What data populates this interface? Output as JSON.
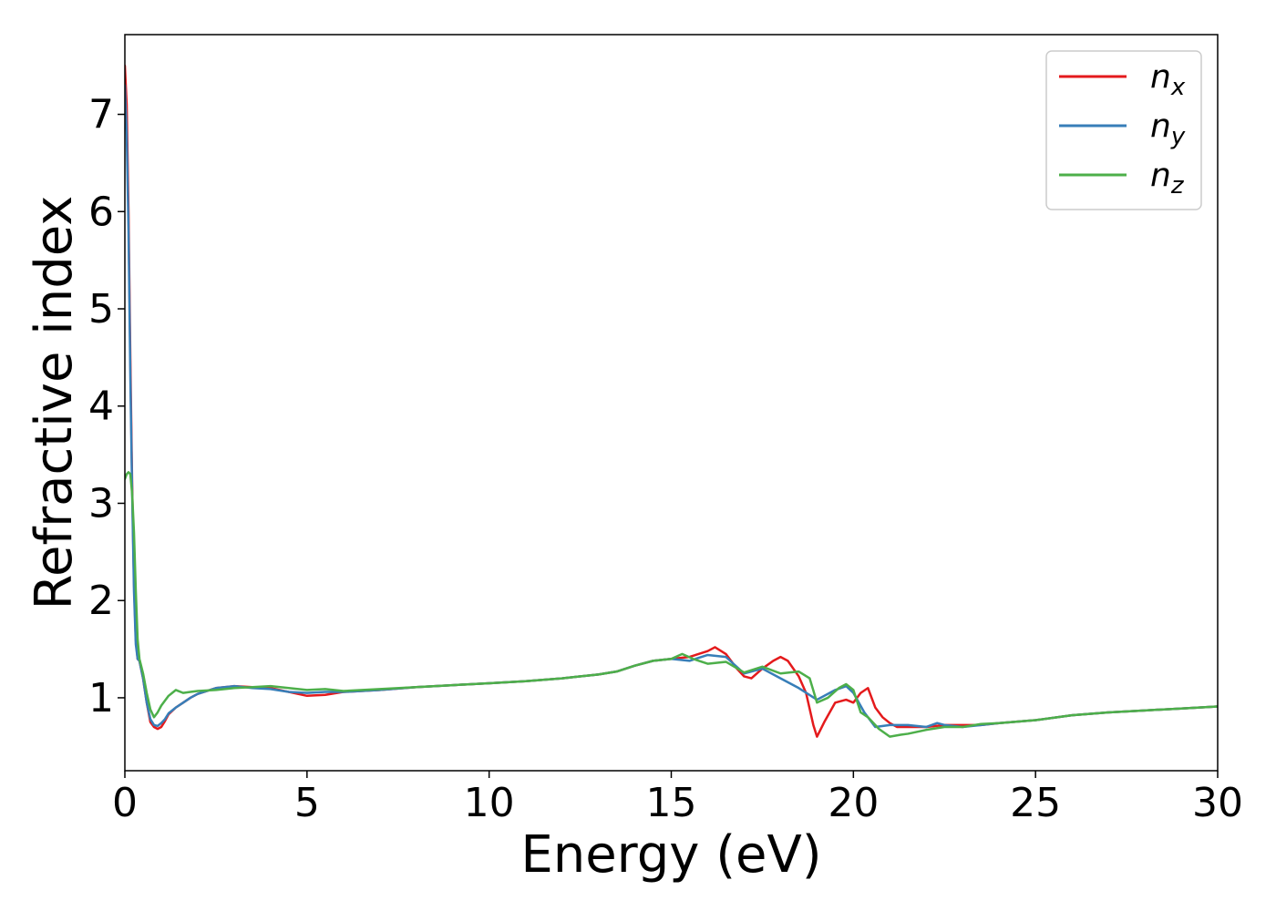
{
  "chart_data": {
    "type": "line",
    "title": "",
    "xlabel": "Energy (eV)",
    "ylabel": "Refractive index",
    "xlim": [
      0,
      30
    ],
    "ylim": [
      0.25,
      7.82
    ],
    "xticks": [
      0,
      5,
      10,
      15,
      20,
      25,
      30
    ],
    "yticks": [
      1,
      2,
      3,
      4,
      5,
      6,
      7
    ],
    "grid": false,
    "legend_position": "top-right",
    "series": [
      {
        "name": "n",
        "subscript": "x",
        "color": "#e41a1c",
        "x": [
          0,
          0.05,
          0.1,
          0.15,
          0.2,
          0.25,
          0.3,
          0.35,
          0.4,
          0.5,
          0.6,
          0.7,
          0.8,
          0.9,
          1.0,
          1.1,
          1.2,
          1.4,
          1.6,
          1.8,
          2.0,
          2.5,
          3.0,
          3.5,
          4.0,
          4.5,
          5.0,
          5.5,
          6.0,
          7.0,
          8.0,
          9.0,
          10.0,
          11.0,
          12.0,
          13.0,
          13.5,
          14.0,
          14.5,
          15.0,
          15.5,
          16.0,
          16.2,
          16.5,
          16.8,
          17.0,
          17.2,
          17.5,
          17.8,
          18.0,
          18.2,
          18.5,
          18.7,
          18.9,
          19.0,
          19.2,
          19.5,
          19.8,
          20.0,
          20.2,
          20.4,
          20.6,
          20.8,
          21.0,
          21.2,
          21.5,
          22.0,
          22.5,
          23.0,
          23.5,
          24.0,
          25.0,
          26.0,
          27.0,
          28.0,
          29.0,
          30.0
        ],
        "y": [
          7.5,
          7.1,
          6.0,
          4.5,
          3.2,
          2.2,
          1.6,
          1.4,
          1.38,
          1.2,
          0.95,
          0.75,
          0.7,
          0.68,
          0.7,
          0.76,
          0.83,
          0.9,
          0.95,
          1.0,
          1.04,
          1.1,
          1.12,
          1.11,
          1.1,
          1.06,
          1.02,
          1.03,
          1.06,
          1.08,
          1.11,
          1.13,
          1.15,
          1.17,
          1.2,
          1.24,
          1.27,
          1.33,
          1.38,
          1.4,
          1.42,
          1.48,
          1.52,
          1.45,
          1.3,
          1.22,
          1.2,
          1.3,
          1.38,
          1.42,
          1.38,
          1.22,
          1.05,
          0.72,
          0.6,
          0.75,
          0.95,
          0.98,
          0.95,
          1.05,
          1.1,
          0.9,
          0.8,
          0.74,
          0.7,
          0.7,
          0.7,
          0.72,
          0.72,
          0.72,
          0.74,
          0.77,
          0.82,
          0.85,
          0.87,
          0.89,
          0.91
        ]
      },
      {
        "name": "n",
        "subscript": "y",
        "color": "#377eb8",
        "x": [
          0,
          0.05,
          0.1,
          0.15,
          0.2,
          0.25,
          0.3,
          0.35,
          0.4,
          0.5,
          0.6,
          0.7,
          0.8,
          0.9,
          1.0,
          1.1,
          1.2,
          1.4,
          1.6,
          1.8,
          2.0,
          2.5,
          3.0,
          3.5,
          4.0,
          4.5,
          5.0,
          5.5,
          6.0,
          7.0,
          8.0,
          9.0,
          10.0,
          11.0,
          12.0,
          13.0,
          13.5,
          14.0,
          14.5,
          15.0,
          15.5,
          16.0,
          16.5,
          17.0,
          17.5,
          18.0,
          18.5,
          19.0,
          19.5,
          19.8,
          20.0,
          20.3,
          20.6,
          21.0,
          21.5,
          22.0,
          22.3,
          22.5,
          23.0,
          23.5,
          24.0,
          25.0,
          26.0,
          27.0,
          28.0,
          29.0,
          30.0
        ],
        "y": [
          7.3,
          6.8,
          5.8,
          4.3,
          3.1,
          2.1,
          1.55,
          1.4,
          1.38,
          1.2,
          0.95,
          0.78,
          0.72,
          0.71,
          0.74,
          0.78,
          0.84,
          0.9,
          0.95,
          1.0,
          1.04,
          1.1,
          1.12,
          1.1,
          1.09,
          1.06,
          1.05,
          1.06,
          1.06,
          1.08,
          1.11,
          1.13,
          1.15,
          1.17,
          1.2,
          1.24,
          1.27,
          1.33,
          1.38,
          1.4,
          1.38,
          1.44,
          1.42,
          1.25,
          1.3,
          1.2,
          1.1,
          0.98,
          1.08,
          1.12,
          1.05,
          0.85,
          0.7,
          0.72,
          0.72,
          0.7,
          0.74,
          0.72,
          0.7,
          0.72,
          0.74,
          0.77,
          0.82,
          0.85,
          0.87,
          0.89,
          0.91
        ]
      },
      {
        "name": "n",
        "subscript": "z",
        "color": "#4daf4a",
        "x": [
          0,
          0.05,
          0.1,
          0.15,
          0.2,
          0.25,
          0.3,
          0.35,
          0.4,
          0.5,
          0.6,
          0.7,
          0.8,
          0.9,
          1.0,
          1.2,
          1.4,
          1.6,
          1.8,
          2.0,
          2.5,
          3.0,
          3.5,
          4.0,
          4.5,
          5.0,
          5.5,
          6.0,
          7.0,
          8.0,
          9.0,
          10.0,
          11.0,
          12.0,
          13.0,
          13.5,
          14.0,
          14.5,
          15.0,
          15.3,
          15.6,
          16.0,
          16.5,
          17.0,
          17.5,
          18.0,
          18.5,
          18.8,
          19.0,
          19.3,
          19.6,
          19.8,
          20.0,
          20.2,
          20.4,
          20.7,
          21.0,
          21.3,
          21.5,
          22.0,
          22.5,
          23.0,
          23.5,
          24.0,
          25.0,
          26.0,
          27.0,
          28.0,
          29.0,
          30.0
        ],
        "y": [
          3.25,
          3.3,
          3.32,
          3.3,
          3.1,
          2.7,
          2.1,
          1.6,
          1.4,
          1.25,
          1.05,
          0.88,
          0.8,
          0.85,
          0.92,
          1.02,
          1.08,
          1.05,
          1.06,
          1.07,
          1.08,
          1.1,
          1.11,
          1.12,
          1.1,
          1.08,
          1.09,
          1.07,
          1.09,
          1.11,
          1.13,
          1.15,
          1.17,
          1.2,
          1.24,
          1.27,
          1.33,
          1.38,
          1.4,
          1.45,
          1.4,
          1.35,
          1.37,
          1.26,
          1.32,
          1.25,
          1.27,
          1.2,
          0.95,
          1.0,
          1.1,
          1.14,
          1.08,
          0.85,
          0.8,
          0.68,
          0.6,
          0.62,
          0.63,
          0.67,
          0.7,
          0.7,
          0.73,
          0.74,
          0.77,
          0.82,
          0.85,
          0.87,
          0.89,
          0.91
        ]
      }
    ]
  }
}
